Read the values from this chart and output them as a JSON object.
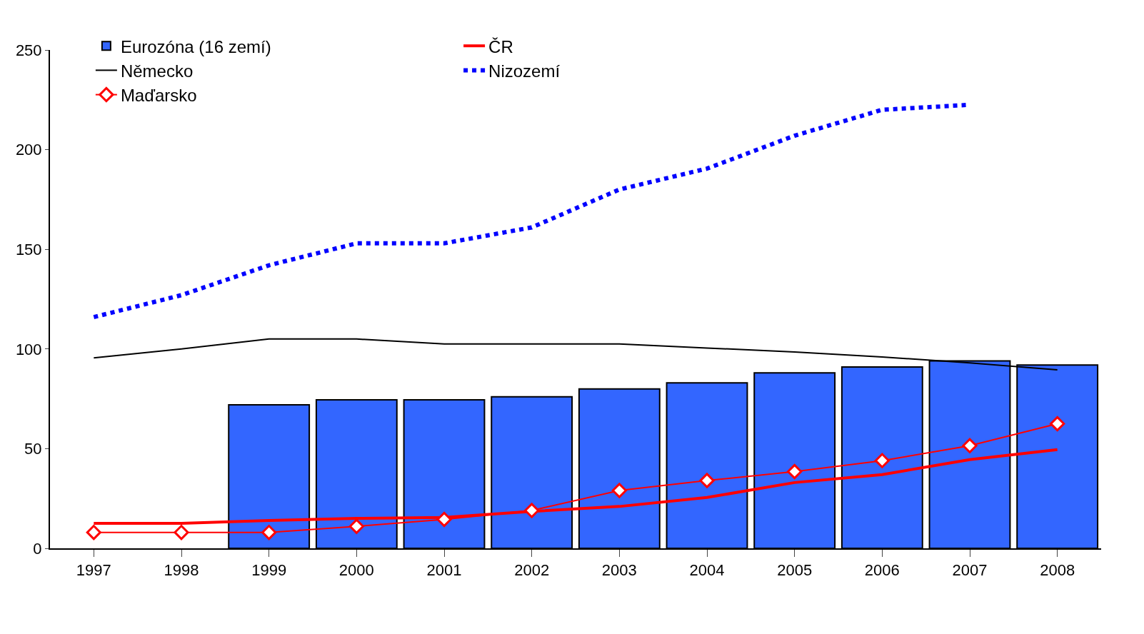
{
  "chart_data": {
    "type": "bar",
    "categories": [
      "1997",
      "1998",
      "1999",
      "2000",
      "2001",
      "2002",
      "2003",
      "2004",
      "2005",
      "2006",
      "2007",
      "2008"
    ],
    "series": [
      {
        "name": "Eurozóna (16 zemí)",
        "color": "#3366ff",
        "values": [
          null,
          null,
          72,
          74.5,
          74.5,
          76,
          80,
          83,
          88,
          91,
          94,
          92
        ]
      },
      {
        "name": "ČR",
        "type": "line",
        "color": "#ff0000",
        "line_style": "solid",
        "marker": "none",
        "values": [
          12.5,
          12.5,
          14,
          15,
          15.5,
          18.5,
          21,
          25.5,
          33,
          37,
          44.5,
          49.5
        ]
      },
      {
        "name": "Německo",
        "type": "line",
        "color": "#000000",
        "line_style": "solid",
        "marker": "none",
        "values": [
          95.5,
          100,
          105,
          105,
          102.5,
          102.5,
          102.5,
          100.5,
          98.5,
          96,
          93,
          89.5
        ]
      },
      {
        "name": "Nizozemí",
        "type": "line",
        "color": "#0000ff",
        "line_style": "dotted",
        "marker": "none",
        "values": [
          116,
          127,
          142,
          153,
          153,
          161,
          180,
          190.5,
          207,
          220,
          222.5,
          null
        ]
      },
      {
        "name": "Maďarsko",
        "type": "line",
        "color": "#ff0000",
        "line_style": "solid",
        "marker": "diamond",
        "values": [
          8,
          8,
          8,
          11,
          14.5,
          19,
          29,
          34,
          38.5,
          44,
          51.5,
          62.5
        ]
      }
    ],
    "ylim": [
      0,
      250
    ],
    "yticks": [
      0,
      50,
      100,
      150,
      200,
      250
    ],
    "legend": "top left"
  }
}
